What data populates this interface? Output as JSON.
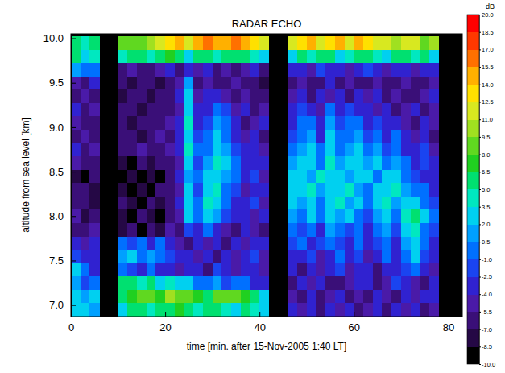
{
  "chart_data": {
    "type": "heatmap",
    "title": "RADAR ECHO",
    "x_label": "time [min. after 15-Nov-2005 1:40 LT]",
    "y_label": "altitude from sea level [km]",
    "x": [
      1,
      3,
      5,
      7,
      9,
      11,
      13,
      15,
      17,
      19,
      21,
      23,
      25,
      27,
      29,
      31,
      33,
      35,
      37,
      39,
      41,
      43,
      45,
      47,
      49,
      51,
      53,
      55,
      57,
      59,
      61,
      63,
      65,
      67,
      69,
      71,
      73,
      75,
      77,
      79,
      81
    ],
    "y": [
      6.95,
      7.1,
      7.25,
      7.4,
      7.55,
      7.7,
      7.85,
      8.0,
      8.15,
      8.3,
      8.45,
      8.6,
      8.75,
      8.9,
      9.05,
      9.2,
      9.35,
      9.5,
      9.65,
      9.8,
      9.95
    ],
    "values": [
      [
        2,
        3,
        1,
        null,
        null,
        3,
        5,
        6,
        4,
        5,
        6,
        7,
        5,
        4,
        6,
        5,
        4,
        3,
        5,
        4,
        2,
        null,
        null,
        -4,
        -5,
        -3,
        -6,
        -4,
        -5,
        -3,
        -6,
        -5,
        -4,
        -6,
        -3,
        -5,
        -4,
        -6,
        -5,
        null,
        null
      ],
      [
        3,
        1,
        2,
        null,
        null,
        6,
        7,
        8,
        9,
        7,
        10,
        8,
        9,
        7,
        6,
        8,
        9,
        8,
        7,
        5,
        3,
        null,
        null,
        -5,
        -6,
        -4,
        -7,
        -5,
        -4,
        -6,
        -5,
        -7,
        -3,
        -5,
        -6,
        -4,
        -5,
        -3,
        -4,
        null,
        null
      ],
      [
        1,
        -2,
        0,
        null,
        null,
        5,
        6,
        4,
        5,
        3,
        4,
        2,
        3,
        0,
        -1,
        1,
        -2,
        0,
        -1,
        -3,
        -4,
        null,
        null,
        -6,
        -4,
        -5,
        -3,
        -6,
        -7,
        -5,
        -4,
        -3,
        -6,
        -5,
        -2,
        -4,
        -5,
        -6,
        -3,
        null,
        null
      ],
      [
        2,
        0,
        -3,
        null,
        null,
        0,
        -2,
        -3,
        -1,
        -4,
        -3,
        -5,
        -4,
        -3,
        -6,
        -2,
        -4,
        -5,
        -3,
        -4,
        -5,
        null,
        null,
        -4,
        -6,
        -3,
        -5,
        -4,
        -2,
        -5,
        -3,
        -4,
        -6,
        -3,
        -4,
        -2,
        0,
        -3,
        -5,
        null,
        null
      ],
      [
        -2,
        -4,
        -3,
        null,
        null,
        1,
        2,
        0,
        1,
        -1,
        -2,
        -4,
        -3,
        -5,
        -4,
        -6,
        -3,
        -5,
        -4,
        -2,
        -5,
        null,
        null,
        -3,
        -4,
        -2,
        -5,
        -3,
        -1,
        -4,
        -2,
        -5,
        -3,
        -1,
        -4,
        0,
        2,
        -2,
        -4,
        null,
        null
      ],
      [
        -4,
        -5,
        -3,
        null,
        null,
        -1,
        -2,
        0,
        -3,
        -1,
        -4,
        -5,
        -6,
        -4,
        -5,
        -3,
        -6,
        -4,
        -5,
        -3,
        -4,
        null,
        null,
        -2,
        -1,
        -3,
        -2,
        0,
        -2,
        -3,
        -1,
        -4,
        -2,
        0,
        -3,
        1,
        3,
        -1,
        -3,
        null,
        null
      ],
      [
        -6,
        -7,
        -5,
        null,
        null,
        -8,
        -7,
        -9,
        -6,
        -8,
        -5,
        -6,
        -2,
        -3,
        -1,
        -4,
        -5,
        -6,
        -4,
        -5,
        -6,
        null,
        null,
        -1,
        -2,
        0,
        -3,
        1,
        -1,
        -2,
        0,
        -3,
        -1,
        1,
        -2,
        2,
        4,
        0,
        -2,
        null,
        null
      ],
      [
        -5,
        -8,
        -7,
        null,
        null,
        -8,
        -9,
        -7,
        -8,
        -9,
        -6,
        -5,
        2,
        -1,
        3,
        1,
        -2,
        -4,
        -3,
        -5,
        -4,
        null,
        null,
        1,
        0,
        2,
        -1,
        3,
        1,
        2,
        0,
        -2,
        1,
        3,
        0,
        4,
        5,
        2,
        -1,
        null,
        null
      ],
      [
        -6,
        -7,
        -8,
        null,
        null,
        -7,
        -8,
        -9,
        -7,
        -8,
        -6,
        -4,
        3,
        0,
        4,
        2,
        -1,
        -3,
        -4,
        -2,
        -5,
        null,
        null,
        2,
        1,
        3,
        0,
        2,
        4,
        1,
        3,
        -1,
        2,
        4,
        1,
        3,
        2,
        0,
        -2,
        null,
        null
      ],
      [
        -7,
        -6,
        -8,
        null,
        null,
        -8,
        -9,
        -8,
        -9,
        -7,
        -6,
        -5,
        2,
        -2,
        3,
        4,
        0,
        -2,
        -5,
        -3,
        -4,
        null,
        null,
        3,
        2,
        4,
        1,
        3,
        2,
        4,
        1,
        0,
        3,
        2,
        4,
        1,
        0,
        -1,
        -3,
        null,
        null
      ],
      [
        -8,
        -9,
        -7,
        null,
        null,
        -9,
        -8,
        -9,
        -8,
        -9,
        -7,
        -4,
        1,
        -1,
        2,
        3,
        1,
        -1,
        -4,
        -2,
        -5,
        null,
        null,
        2,
        3,
        1,
        4,
        2,
        3,
        1,
        2,
        3,
        0,
        3,
        2,
        0,
        -2,
        -3,
        -4,
        null,
        null
      ],
      [
        -5,
        -7,
        -6,
        null,
        null,
        -8,
        -9,
        -7,
        -8,
        -6,
        -7,
        -5,
        3,
        -2,
        1,
        4,
        2,
        0,
        -3,
        -4,
        -3,
        null,
        null,
        1,
        2,
        3,
        0,
        4,
        1,
        2,
        3,
        1,
        2,
        0,
        1,
        -1,
        -3,
        -2,
        -4,
        null,
        null
      ],
      [
        -4,
        -6,
        -5,
        null,
        null,
        -6,
        -7,
        -5,
        -6,
        -7,
        -5,
        -4,
        4,
        -1,
        0,
        3,
        1,
        -2,
        -4,
        -3,
        -5,
        null,
        null,
        0,
        1,
        2,
        -1,
        3,
        0,
        1,
        2,
        -1,
        1,
        -2,
        0,
        -3,
        -4,
        -2,
        -5,
        null,
        null
      ],
      [
        -6,
        -5,
        -7,
        null,
        null,
        -7,
        -6,
        -8,
        -7,
        -5,
        -6,
        -4,
        3,
        -2,
        -1,
        2,
        0,
        -3,
        -5,
        -4,
        -6,
        null,
        null,
        -2,
        0,
        1,
        -3,
        2,
        -1,
        0,
        1,
        -2,
        0,
        -3,
        -1,
        -4,
        -5,
        -3,
        -6,
        null,
        null
      ],
      [
        -5,
        -7,
        -6,
        null,
        null,
        -6,
        -8,
        -7,
        -6,
        -7,
        -5,
        -3,
        4,
        -3,
        -2,
        1,
        -1,
        -4,
        -6,
        -5,
        -4,
        null,
        null,
        -3,
        -1,
        0,
        -4,
        1,
        -2,
        -1,
        0,
        -3,
        -2,
        -4,
        -3,
        -5,
        -6,
        -4,
        -5,
        null,
        null
      ],
      [
        -4,
        -6,
        -5,
        null,
        null,
        -7,
        -6,
        -8,
        -7,
        -6,
        -7,
        -5,
        3,
        -4,
        -3,
        -1,
        -2,
        -5,
        -4,
        -6,
        -5,
        null,
        null,
        -4,
        -2,
        -3,
        -5,
        -1,
        -3,
        -2,
        -4,
        -3,
        -5,
        -4,
        -6,
        -5,
        -4,
        -6,
        -5,
        null,
        null
      ],
      [
        -6,
        -5,
        -7,
        null,
        null,
        -8,
        -7,
        -6,
        -8,
        -7,
        -6,
        -4,
        2,
        -5,
        -4,
        -3,
        -5,
        -6,
        -5,
        -7,
        -6,
        null,
        null,
        -5,
        -4,
        -6,
        -3,
        -5,
        -4,
        -6,
        -3,
        -5,
        -4,
        -6,
        -5,
        -7,
        -6,
        -5,
        -4,
        null,
        null
      ],
      [
        -5,
        -6,
        -4,
        null,
        null,
        -7,
        -8,
        -7,
        -6,
        -8,
        -7,
        -5,
        1,
        -6,
        -5,
        -7,
        -6,
        -5,
        -7,
        -6,
        -8,
        null,
        null,
        -6,
        -5,
        -7,
        -6,
        -4,
        -6,
        -5,
        -7,
        -6,
        -5,
        -7,
        -6,
        -5,
        -7,
        -6,
        -5,
        null,
        null
      ],
      [
        1,
        -1,
        0,
        null,
        null,
        -6,
        -5,
        -7,
        -6,
        -5,
        -4,
        -6,
        -3,
        -5,
        -4,
        -6,
        -5,
        -7,
        -5,
        -4,
        -6,
        null,
        null,
        -4,
        -3,
        -5,
        -2,
        -4,
        -3,
        -5,
        -4,
        -2,
        -3,
        -5,
        -4,
        -3,
        -5,
        -4,
        -3,
        null,
        null
      ],
      [
        5,
        3,
        4,
        null,
        null,
        4,
        6,
        5,
        4,
        6,
        7,
        6,
        3,
        5,
        6,
        4,
        5,
        6,
        5,
        4,
        3,
        null,
        null,
        3,
        5,
        4,
        6,
        5,
        3,
        4,
        6,
        5,
        4,
        3,
        5,
        6,
        4,
        5,
        3,
        null,
        null
      ],
      [
        6,
        4,
        5,
        null,
        null,
        8,
        9,
        8,
        10,
        11,
        13,
        14,
        12,
        15,
        16,
        14,
        15,
        16,
        14,
        13,
        12,
        null,
        null,
        11,
        13,
        14,
        12,
        13,
        15,
        12,
        14,
        13,
        11,
        12,
        10,
        12,
        11,
        9,
        10,
        null,
        null
      ]
    ],
    "xlim": [
      0,
      83
    ],
    "ylim": [
      6.87,
      10.05
    ],
    "xticks": [
      0,
      20,
      40,
      60,
      80
    ],
    "yticks": [
      {
        "value": 7,
        "label": "7.0"
      },
      7.5,
      {
        "value": 8,
        "label": "8.0"
      },
      8.5,
      {
        "value": 9,
        "label": "9.0"
      },
      9.5,
      {
        "value": 10,
        "label": "10.0"
      }
    ],
    "colorbar": {
      "label": "dB",
      "range": [
        -10,
        20
      ],
      "ticks": [
        {
          "value": 20,
          "label": "20.0"
        },
        {
          "value": 18.5,
          "label": "18.5"
        },
        {
          "value": 17,
          "label": "17.0"
        },
        {
          "value": 15.5,
          "label": "15.5"
        },
        {
          "value": 14,
          "label": "14.0"
        },
        {
          "value": 12.5,
          "label": "12.5"
        },
        {
          "value": 11,
          "label": "11.0"
        },
        {
          "value": 9.5,
          "label": "9.5"
        },
        {
          "value": 8,
          "label": "8.0"
        },
        {
          "value": 6.5,
          "label": "6.5"
        },
        {
          "value": 5,
          "label": "5.0"
        },
        {
          "value": 3.5,
          "label": "3.5"
        },
        {
          "value": 2,
          "label": "2.0"
        },
        {
          "value": 0.5,
          "label": "0.5"
        },
        {
          "value": -1,
          "label": "-1.0"
        },
        {
          "value": -2.5,
          "label": "-2.5"
        },
        {
          "value": -4,
          "label": "-4.0"
        },
        {
          "value": -5.5,
          "label": "-5.5"
        },
        {
          "value": -7,
          "label": "-7.0"
        },
        {
          "value": -8.5,
          "label": "-8.5"
        },
        {
          "value": -10,
          "label": "-10.0"
        }
      ],
      "colors": [
        "#000000",
        "#250845",
        "#3a0f78",
        "#4a1aa8",
        "#3022d0",
        "#1a44f0",
        "#0070ff",
        "#00a0ff",
        "#00d0f0",
        "#00e8c0",
        "#00e070",
        "#20d020",
        "#60d820",
        "#a0e020",
        "#d8e820",
        "#ffe000",
        "#ffb000",
        "#ff7000",
        "#ff3800",
        "#ff0000"
      ]
    }
  }
}
